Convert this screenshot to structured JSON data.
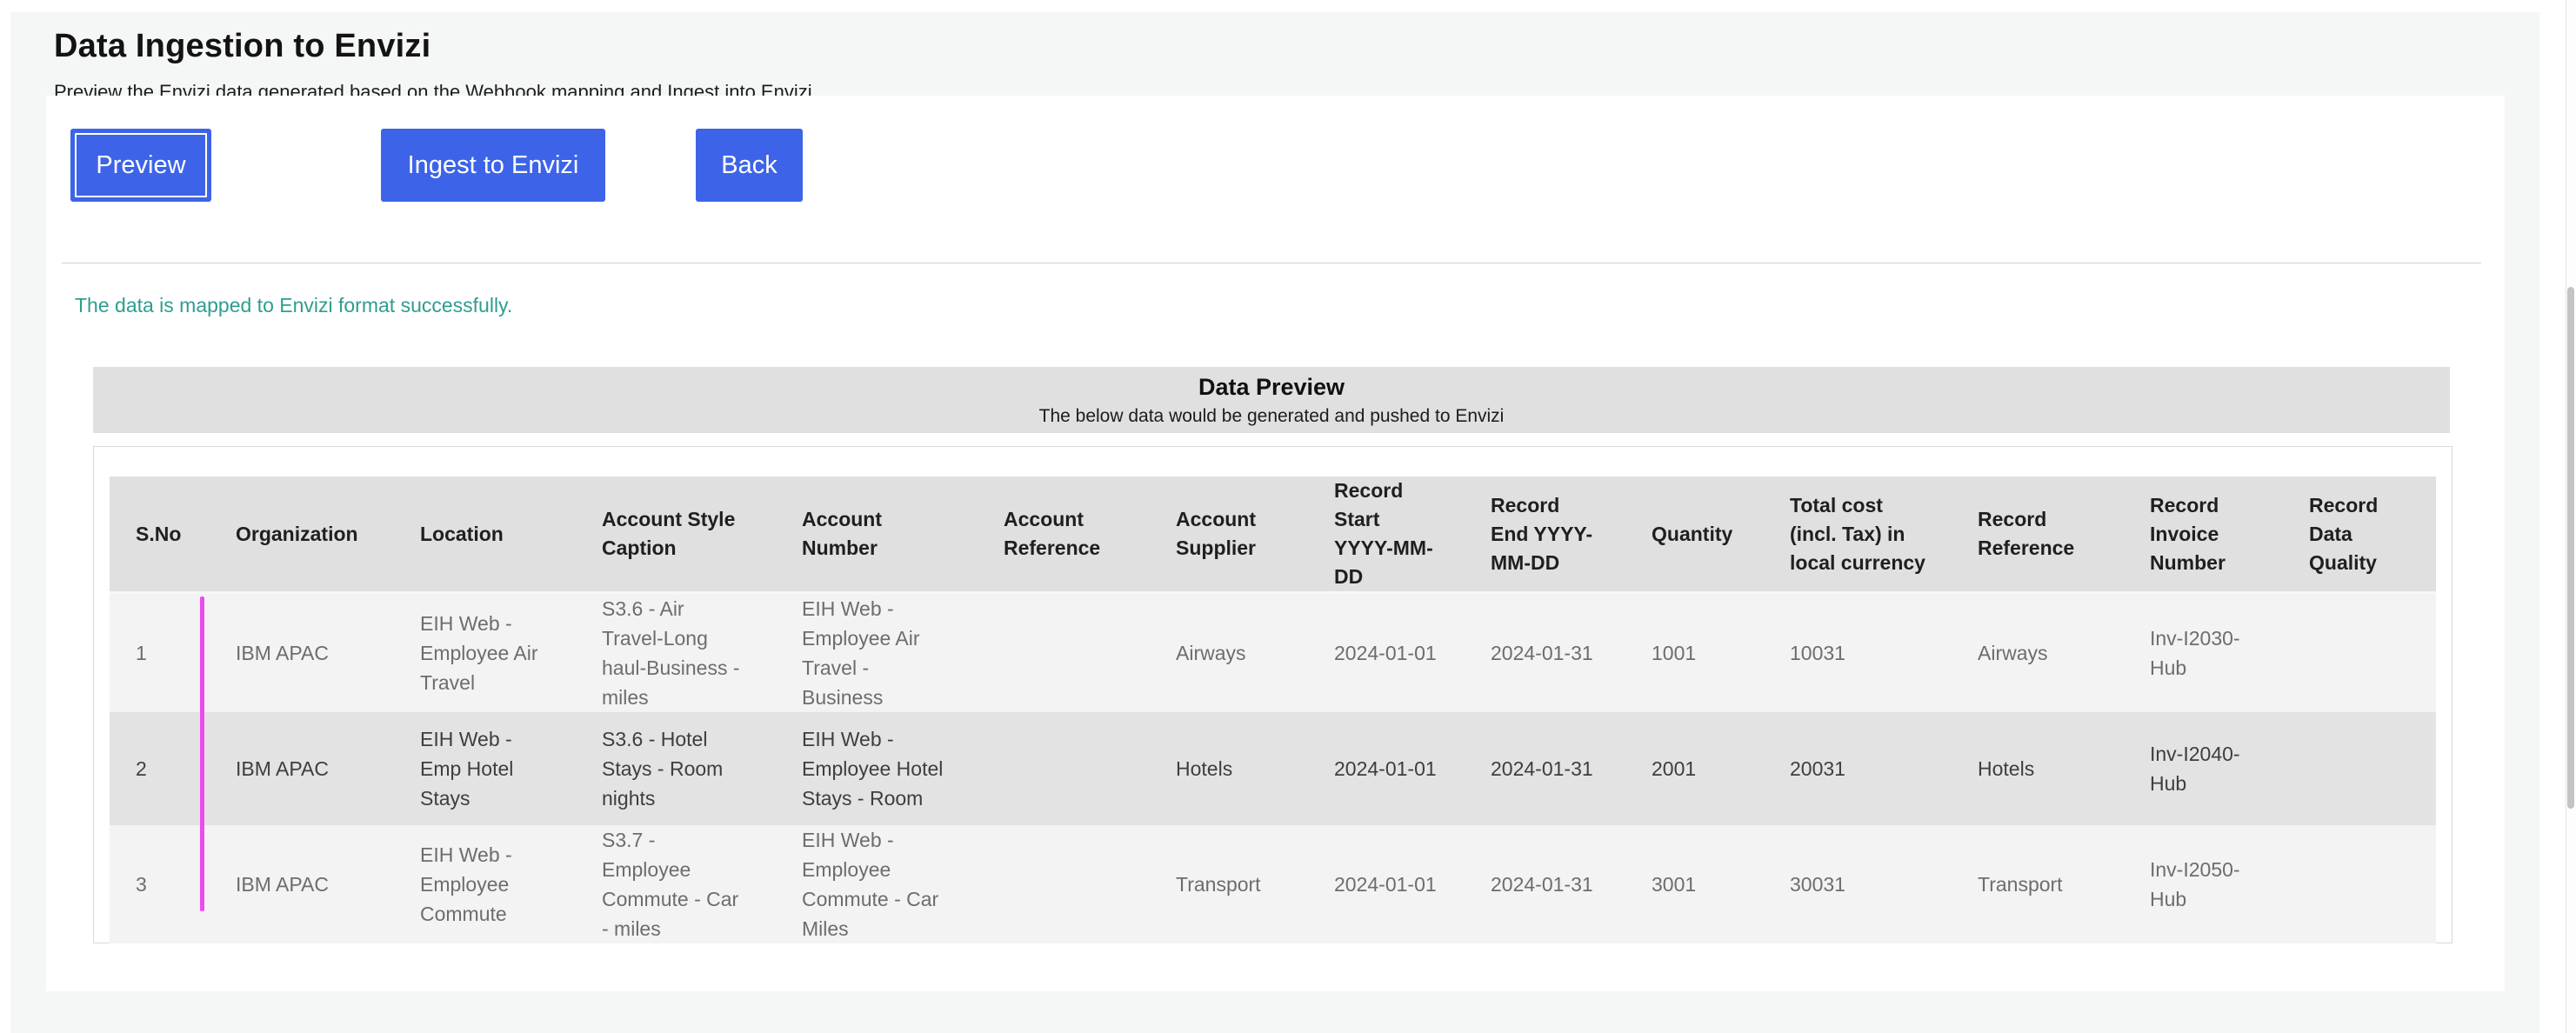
{
  "colors": {
    "accent_blue": "#3D64E8",
    "success_teal": "#2E9D8F",
    "highlight_magenta": "#EB4DEF",
    "banner_gray": "#E0E0E0"
  },
  "header": {
    "title": "Data Ingestion to Envizi",
    "subtitle": "Preview the Envizi data generated based on the Webhook mapping and Ingest into Envizi"
  },
  "toolbar": {
    "preview_label": "Preview",
    "ingest_label": "Ingest to Envizi",
    "back_label": "Back"
  },
  "status": {
    "success_message": "The data is mapped to Envizi format successfully."
  },
  "preview_panel": {
    "title": "Data Preview",
    "subtitle": "The below data would be generated and pushed to Envizi"
  },
  "table": {
    "columns": [
      "S.No",
      "Organization",
      "Location",
      "Account Style Caption",
      "Account Number",
      "Account Reference",
      "Account Supplier",
      "Record Start YYYY-MM-DD",
      "Record End YYYY-MM-DD",
      "Quantity",
      "Total cost (incl. Tax) in local currency",
      "Record Reference",
      "Record Invoice Number",
      "Record Data Quality"
    ],
    "rows": [
      {
        "cells": [
          "1",
          "IBM APAC",
          "EIH Web - Employee Air Travel",
          "S3.6 - Air Travel-Long haul-Business - miles",
          "EIH Web - Employee Air Travel - Business",
          "",
          "Airways",
          "2024-01-01",
          "2024-01-31",
          "1001",
          "10031",
          "Airways",
          "Inv-I2030-Hub",
          ""
        ]
      },
      {
        "cells": [
          "2",
          "IBM APAC",
          "EIH Web - Emp Hotel Stays",
          "S3.6 - Hotel Stays - Room nights",
          "EIH Web - Employee Hotel Stays - Room",
          "",
          "Hotels",
          "2024-01-01",
          "2024-01-31",
          "2001",
          "20031",
          "Hotels",
          "Inv-I2040-Hub",
          ""
        ]
      },
      {
        "cells": [
          "3",
          "IBM APAC",
          "EIH Web - Employee Commute",
          "S3.7 - Employee Commute - Car - miles",
          "EIH Web - Employee Commute - Car Miles",
          "",
          "Transport",
          "2024-01-01",
          "2024-01-31",
          "3001",
          "30031",
          "Transport",
          "Inv-I2050-Hub",
          ""
        ]
      }
    ]
  }
}
